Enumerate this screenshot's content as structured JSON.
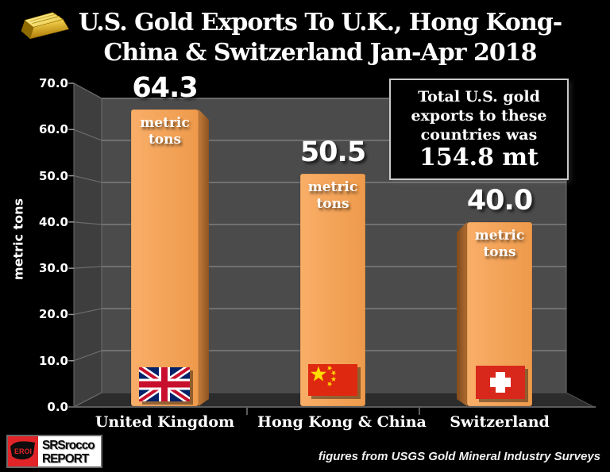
{
  "title": {
    "line1": "U.S. Gold Exports To U.K., Hong Kong-",
    "line2": "China & Switzerland Jan-Apr 2018"
  },
  "chart_data": {
    "type": "bar",
    "title": "U.S. Gold Exports To U.K., Hong Kong-China & Switzerland Jan-Apr 2018",
    "categories": [
      "United Kingdom",
      "Hong Kong & China",
      "Switzerland"
    ],
    "values": [
      64.3,
      50.5,
      40.0
    ],
    "value_labels": [
      "64.3",
      "50.5",
      "40.0"
    ],
    "bar_sublabel": "metric tons",
    "flags": [
      "uk-flag",
      "china-flag",
      "switzerland-flag"
    ],
    "xlabel": "",
    "ylabel": "metric tons",
    "ylim": [
      0,
      70
    ],
    "ytick_step": 10,
    "ytick_labels": [
      "0.0",
      "10.0",
      "20.0",
      "30.0",
      "40.0",
      "50.0",
      "60.0",
      "70.0"
    ],
    "grid": true,
    "legend": "none",
    "style": "3d-perspective dark walls",
    "bar_color": "#f2a159",
    "unit": "metric tons"
  },
  "annotation_box": {
    "line1": "Total U.S. gold",
    "line2": "exports to these",
    "line3": "countries was",
    "total": "154.8 mt"
  },
  "footer": {
    "caption": "figures from USGS Gold Mineral Industry Surveys",
    "logo_badge": "EROI",
    "logo_line1": "SRSrocco",
    "logo_line2": "REPORT"
  },
  "colors": {
    "background": "#000000",
    "back_wall": "#4b4b4b",
    "left_wall": "#3e3e3e",
    "floor": "#2c2c2c",
    "gridline": "#7d7d7d",
    "bar_face": "#f2a159",
    "bar_side": "#9a5a26",
    "text": "#ffffff",
    "box_border": "#c9c9c9",
    "china_flag_red": "#de2910",
    "swiss_flag_red": "#d8281c",
    "uk_flag_blue": "#012169"
  }
}
